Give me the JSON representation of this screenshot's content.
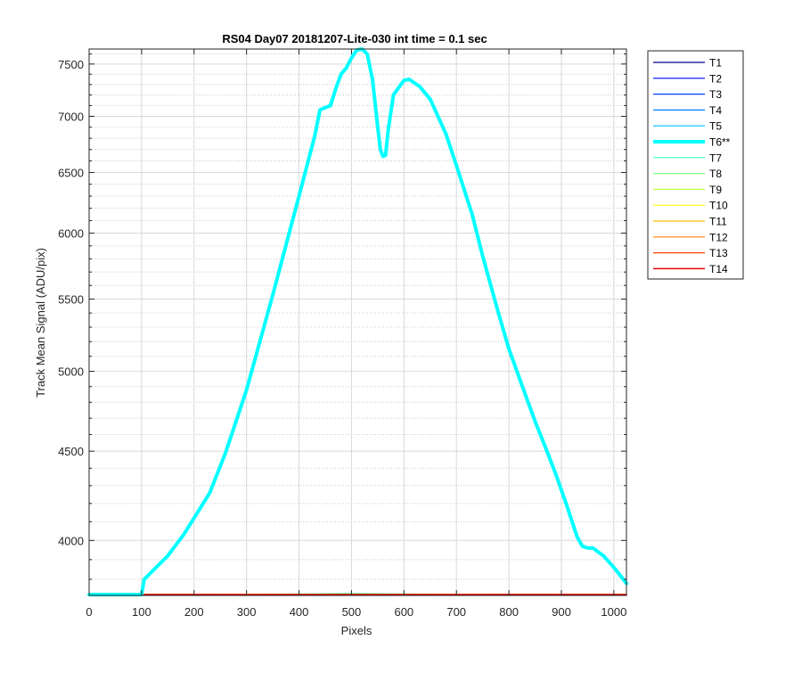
{
  "figure": {
    "background": "#ffffff"
  },
  "chart_data": {
    "type": "line",
    "title": "RS04 Day07 20181207-Lite-030 int time = 0.1 sec",
    "xlabel": "Pixels",
    "ylabel": "Track Mean Signal (ADU/pix)",
    "xlim": [
      0,
      1024
    ],
    "ylim": [
      3720,
      7650
    ],
    "yscale": "log",
    "grid": true,
    "minor_grid": true,
    "legend_position": "outside-right",
    "x_ticks": [
      0,
      100,
      200,
      300,
      400,
      500,
      600,
      700,
      800,
      900,
      1000
    ],
    "x_tick_labels": [
      "0",
      "100",
      "200",
      "300",
      "400",
      "500",
      "600",
      "700",
      "800",
      "900",
      "1000"
    ],
    "y_ticks": [
      4000,
      4500,
      5000,
      5500,
      6000,
      6500,
      7000,
      7500
    ],
    "y_tick_labels": [
      "4000",
      "4500",
      "5000",
      "5500",
      "6000",
      "6500",
      "7000",
      "7500"
    ],
    "y_minor_ticks": [
      3800,
      3900,
      4100,
      4200,
      4300,
      4400,
      4600,
      4700,
      4800,
      4900,
      5100,
      5200,
      5300,
      5400,
      5600,
      5700,
      5800,
      5900,
      6100,
      6200,
      6300,
      6400,
      6600,
      6700,
      6800,
      6900,
      7100,
      7200,
      7300,
      7400,
      7600
    ],
    "series": [
      {
        "name": "T1",
        "color": "#00008f",
        "width": 1.2,
        "x": [
          0,
          1024
        ],
        "y": [
          3720,
          3720
        ]
      },
      {
        "name": "T2",
        "color": "#0000ff",
        "width": 1.2,
        "x": [
          0,
          1024
        ],
        "y": [
          3720,
          3720
        ]
      },
      {
        "name": "T3",
        "color": "#0040ff",
        "width": 1.2,
        "x": [
          0,
          1024
        ],
        "y": [
          3720,
          3720
        ]
      },
      {
        "name": "T4",
        "color": "#0080ff",
        "width": 1.2,
        "x": [
          0,
          1024
        ],
        "y": [
          3720,
          3720
        ]
      },
      {
        "name": "T5",
        "color": "#00bfff",
        "width": 1.2,
        "x": [
          0,
          1024
        ],
        "y": [
          3720,
          3720
        ]
      },
      {
        "name": "T6**",
        "color": "#00ffff",
        "width": 4,
        "x": [
          0,
          95,
          100,
          105,
          120,
          150,
          180,
          200,
          230,
          260,
          300,
          350,
          400,
          430,
          440,
          450,
          460,
          470,
          480,
          490,
          500,
          510,
          520,
          530,
          540,
          550,
          555,
          560,
          565,
          570,
          580,
          600,
          610,
          630,
          650,
          680,
          700,
          730,
          750,
          780,
          800,
          830,
          850,
          870,
          890,
          910,
          930,
          940,
          950,
          960,
          980,
          1000,
          1024
        ],
        "y": [
          3720,
          3720,
          3720,
          3800,
          3840,
          3920,
          4030,
          4120,
          4260,
          4490,
          4880,
          5530,
          6300,
          6820,
          7060,
          7080,
          7100,
          7260,
          7400,
          7460,
          7560,
          7640,
          7650,
          7600,
          7350,
          6900,
          6700,
          6640,
          6650,
          6880,
          7200,
          7340,
          7350,
          7280,
          7160,
          6840,
          6560,
          6150,
          5820,
          5400,
          5150,
          4860,
          4680,
          4520,
          4360,
          4190,
          4020,
          3970,
          3960,
          3960,
          3920,
          3860,
          3780
        ]
      },
      {
        "name": "T7",
        "color": "#40ffbf",
        "width": 1.2,
        "x": [
          0,
          200,
          400,
          500,
          600,
          800,
          1024
        ],
        "y": [
          3722,
          3724,
          3727,
          3730,
          3727,
          3724,
          3721
        ]
      },
      {
        "name": "T8",
        "color": "#80ff80",
        "width": 1.2,
        "x": [
          0,
          200,
          400,
          500,
          600,
          800,
          1024
        ],
        "y": [
          3721,
          3723,
          3726,
          3728,
          3726,
          3723,
          3720
        ]
      },
      {
        "name": "T9",
        "color": "#bfff40",
        "width": 1.2,
        "x": [
          0,
          1024
        ],
        "y": [
          3720,
          3720
        ]
      },
      {
        "name": "T10",
        "color": "#ffff00",
        "width": 1.2,
        "x": [
          0,
          1024
        ],
        "y": [
          3720,
          3720
        ]
      },
      {
        "name": "T11",
        "color": "#ffbf00",
        "width": 1.2,
        "x": [
          0,
          1024
        ],
        "y": [
          3720,
          3720
        ]
      },
      {
        "name": "T12",
        "color": "#ff8000",
        "width": 1.2,
        "x": [
          0,
          1024
        ],
        "y": [
          3720,
          3720
        ]
      },
      {
        "name": "T13",
        "color": "#ff4000",
        "width": 1.2,
        "x": [
          0,
          1024
        ],
        "y": [
          3720,
          3720
        ]
      },
      {
        "name": "T14",
        "color": "#e60000",
        "width": 1.5,
        "x": [
          0,
          1024
        ],
        "y": [
          3721,
          3721
        ]
      }
    ]
  }
}
